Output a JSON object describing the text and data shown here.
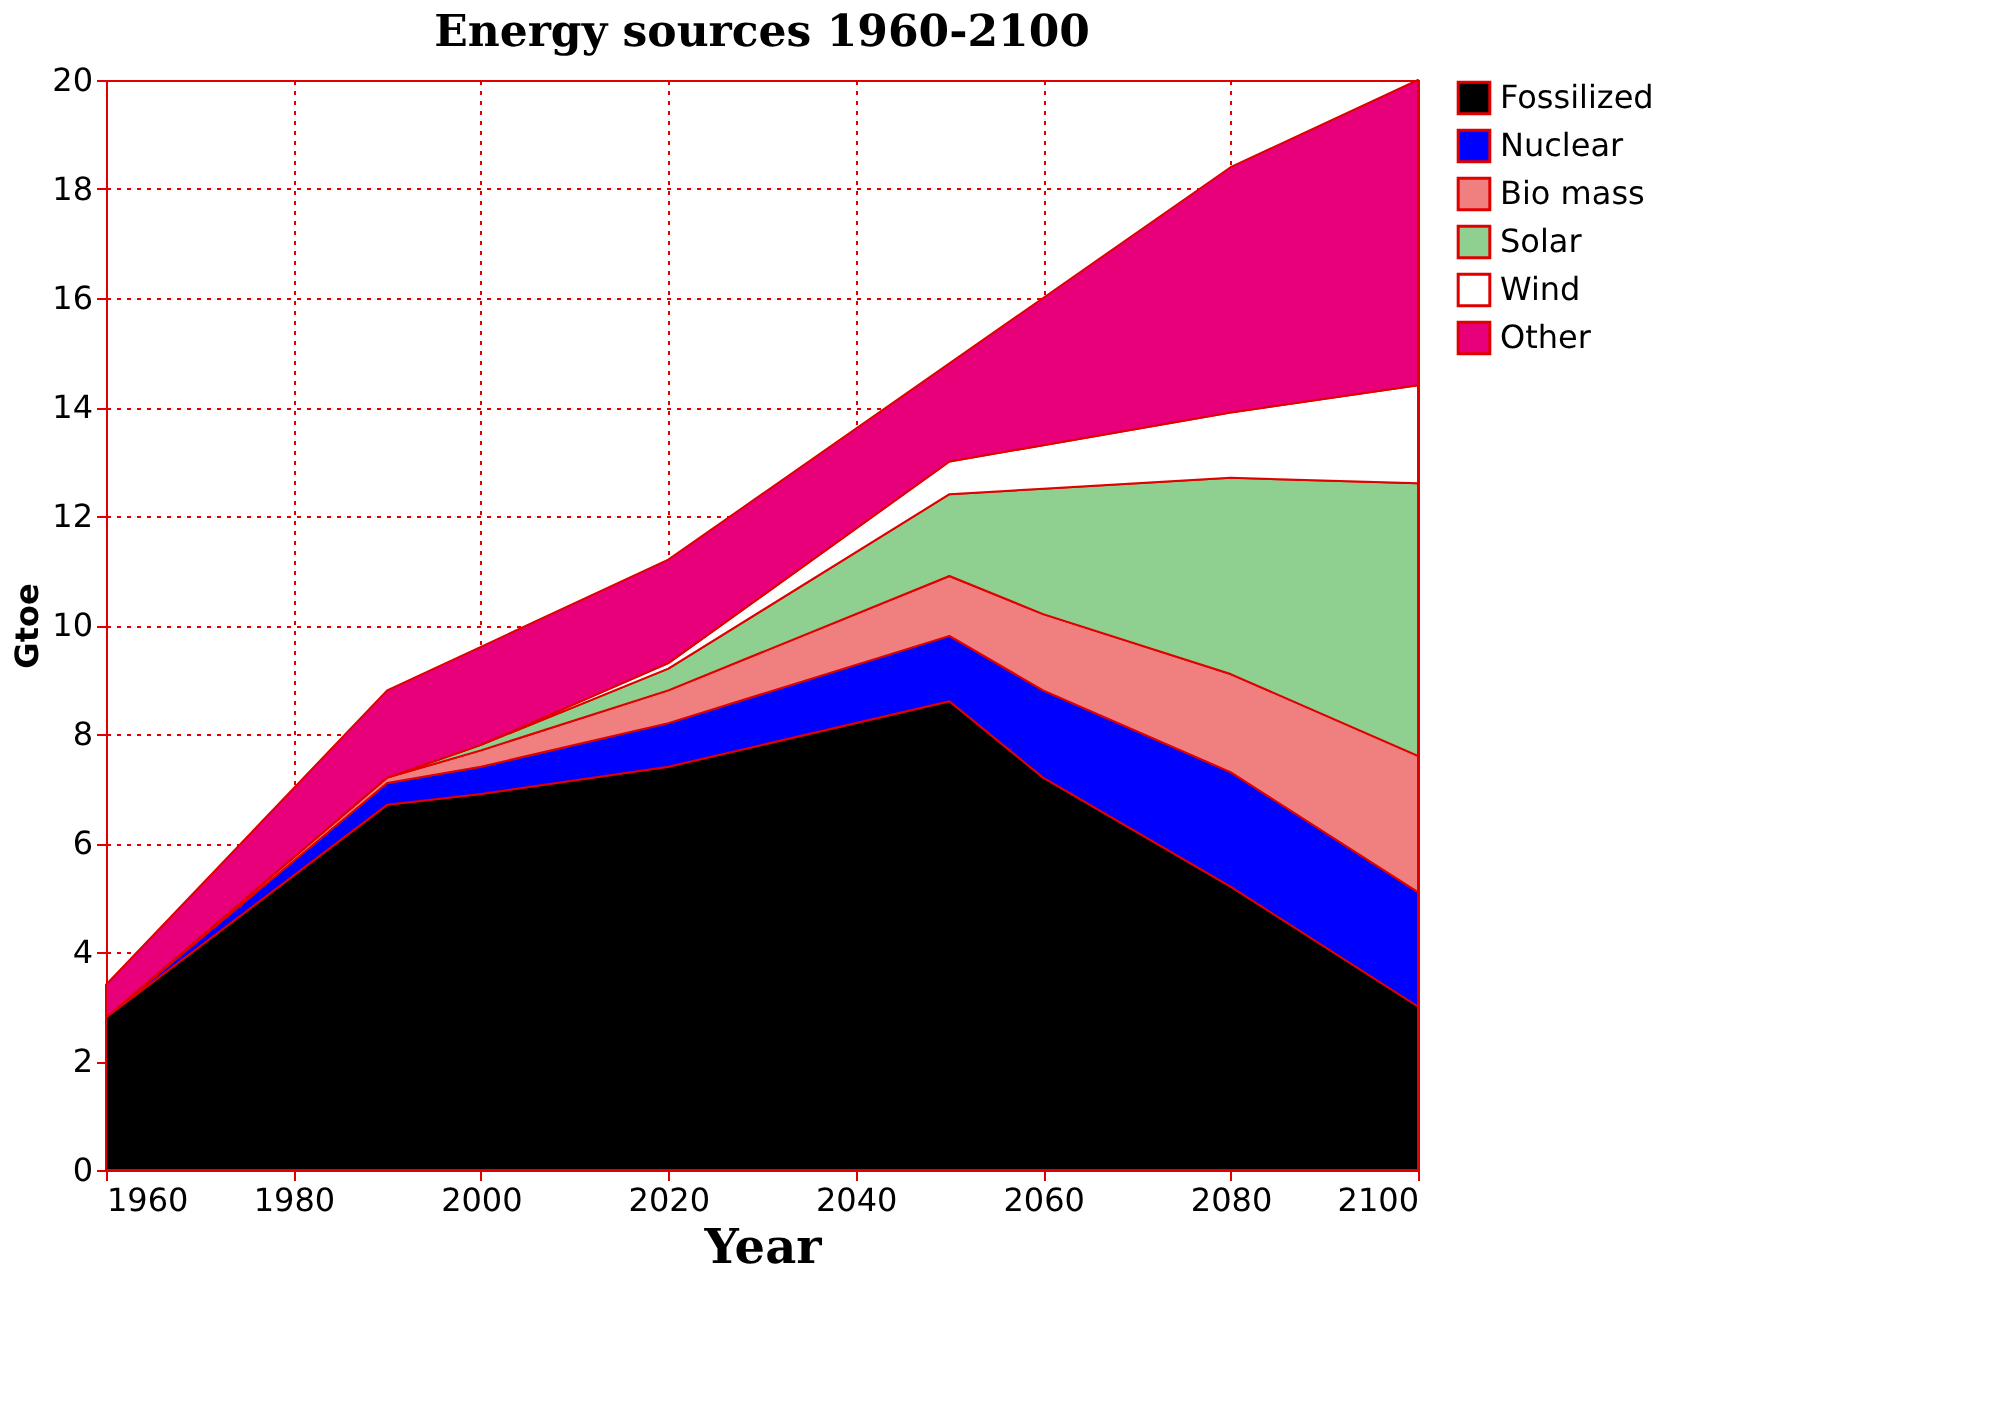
{
  "chart_data": {
    "type": "area",
    "title": "Energy sources 1960-2100",
    "xlabel": "Year",
    "ylabel": "Gtoe",
    "stacked": true,
    "x": [
      1960,
      1990,
      2000,
      2020,
      2050,
      2060,
      2080,
      2100
    ],
    "series": [
      {
        "name": "Fossilized",
        "color": "#000000",
        "values": [
          2.8,
          6.7,
          6.9,
          7.4,
          8.6,
          7.2,
          5.2,
          3.0
        ]
      },
      {
        "name": "Nuclear",
        "color": "#0000ff",
        "values": [
          0,
          0.4,
          0.5,
          0.8,
          1.2,
          1.6,
          2.1,
          2.1
        ]
      },
      {
        "name": "Bio mass",
        "color": "#f08080",
        "values": [
          0,
          0.1,
          0.3,
          0.6,
          1.1,
          1.4,
          1.8,
          2.5
        ]
      },
      {
        "name": " Solar",
        "color": "#8fcf8f",
        "values": [
          0,
          0,
          0.1,
          0.4,
          1.5,
          2.3,
          3.6,
          5.0
        ]
      },
      {
        "name": "Wind",
        "color": "#ffffff",
        "values": [
          0,
          0,
          0,
          0.1,
          0.6,
          0.8,
          1.2,
          1.8
        ]
      },
      {
        "name": "Other",
        "color": "#e8007a",
        "values": [
          0.6,
          1.6,
          1.8,
          1.9,
          1.8,
          2.7,
          4.5,
          5.6
        ]
      }
    ],
    "xlim": [
      1960,
      2100
    ],
    "xticks": [
      1960,
      1980,
      2000,
      2020,
      2040,
      2060,
      2080,
      2100
    ],
    "ylim": [
      0,
      20
    ],
    "yticks": [
      0,
      2,
      4,
      6,
      8,
      10,
      12,
      14,
      16,
      18,
      20
    ],
    "grid": true,
    "legend": "right"
  }
}
